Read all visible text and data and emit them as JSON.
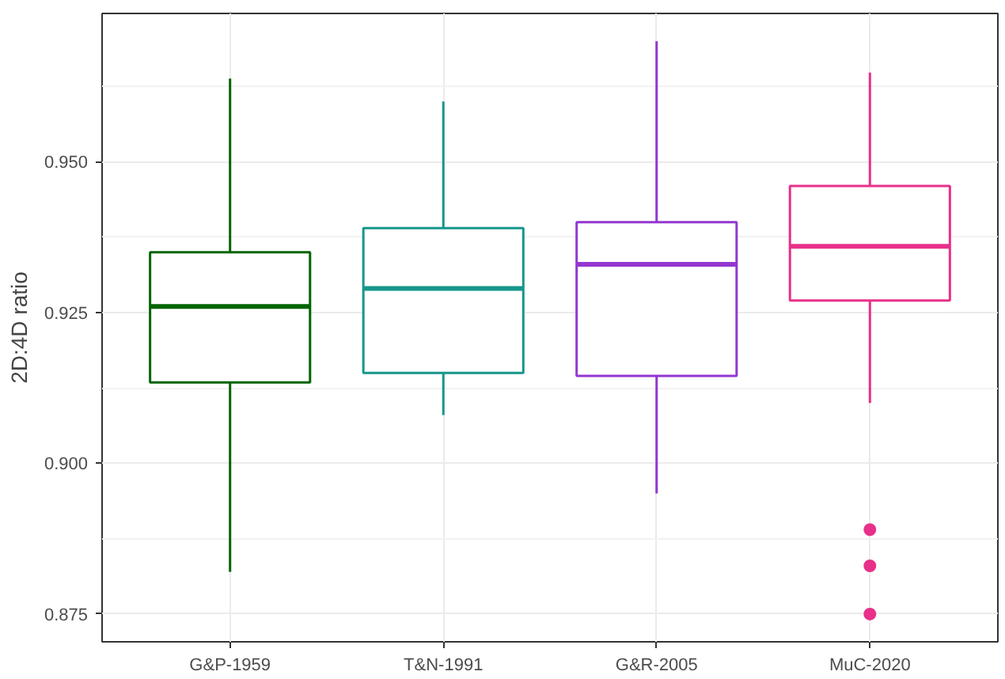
{
  "chart_data": {
    "type": "box",
    "ylabel": "2D:4D ratio",
    "categories": [
      "G&P-1959",
      "T&N-1991",
      "G&R-2005",
      "MuC-2020"
    ],
    "colors": [
      "#006400",
      "#17978c",
      "#9437d0",
      "#e8308a"
    ],
    "boxes": [
      {
        "low": 0.882,
        "q1": 0.9134,
        "median": 0.926,
        "q3": 0.935,
        "high": 0.9638
      },
      {
        "low": 0.908,
        "q1": 0.915,
        "median": 0.929,
        "q3": 0.939,
        "high": 0.96
      },
      {
        "low": 0.895,
        "q1": 0.9145,
        "median": 0.933,
        "q3": 0.94,
        "high": 0.97
      },
      {
        "low": 0.91,
        "q1": 0.927,
        "median": 0.936,
        "q3": 0.946,
        "high": 0.9648,
        "outliers": [
          0.889,
          0.883,
          0.875
        ]
      }
    ],
    "ylim": [
      0.8704,
      0.9746
    ],
    "yticks": [
      {
        "value": 0.875,
        "label": "0.875"
      },
      {
        "value": 0.9,
        "label": "0.900"
      },
      {
        "value": 0.925,
        "label": "0.925"
      },
      {
        "value": 0.95,
        "label": "0.950"
      }
    ],
    "grid": true
  }
}
